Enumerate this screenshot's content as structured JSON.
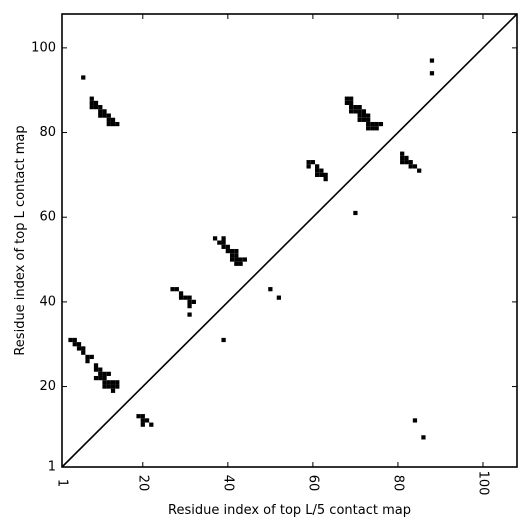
{
  "chart_data": {
    "type": "heatmap",
    "xlabel": "Residue index of top L/5 contact map",
    "ylabel": "Residue index of top L contact map",
    "xlim": [
      1,
      108
    ],
    "ylim": [
      1,
      108
    ],
    "xticks": [
      1,
      20,
      40,
      60,
      80,
      100
    ],
    "yticks": [
      1,
      20,
      40,
      60,
      80,
      100
    ],
    "x_tick_labels": [
      "1",
      "20",
      "40",
      "60",
      "80",
      "100"
    ],
    "y_tick_labels": [
      "1",
      "20",
      "40",
      "60",
      "80",
      "100"
    ],
    "diagonal": true,
    "cell_color": "#000000",
    "upper_contacts": [
      [
        6,
        93
      ],
      [
        8,
        88
      ],
      [
        8,
        87
      ],
      [
        9,
        87
      ],
      [
        8,
        86
      ],
      [
        9,
        86
      ],
      [
        10,
        86
      ],
      [
        10,
        85
      ],
      [
        11,
        85
      ],
      [
        10,
        84
      ],
      [
        11,
        84
      ],
      [
        12,
        84
      ],
      [
        12,
        83
      ],
      [
        13,
        83
      ],
      [
        12,
        82
      ],
      [
        13,
        82
      ],
      [
        14,
        82
      ],
      [
        37,
        55
      ],
      [
        38,
        54
      ],
      [
        39,
        54
      ],
      [
        39,
        55
      ],
      [
        39,
        53
      ],
      [
        40,
        53
      ],
      [
        40,
        52
      ],
      [
        41,
        52
      ],
      [
        42,
        52
      ],
      [
        41,
        51
      ],
      [
        42,
        51
      ],
      [
        41,
        50
      ],
      [
        42,
        50
      ],
      [
        43,
        50
      ],
      [
        44,
        50
      ],
      [
        42,
        49
      ],
      [
        43,
        49
      ],
      [
        59,
        73
      ],
      [
        60,
        73
      ],
      [
        59,
        72
      ],
      [
        61,
        72
      ],
      [
        61,
        71
      ],
      [
        62,
        71
      ],
      [
        61,
        70
      ],
      [
        62,
        70
      ],
      [
        63,
        70
      ],
      [
        63,
        69
      ],
      [
        68,
        88
      ],
      [
        69,
        88
      ],
      [
        68,
        87
      ],
      [
        69,
        87
      ],
      [
        69,
        86
      ],
      [
        70,
        86
      ],
      [
        71,
        86
      ],
      [
        69,
        85
      ],
      [
        70,
        85
      ],
      [
        71,
        85
      ],
      [
        72,
        85
      ],
      [
        71,
        84
      ],
      [
        72,
        84
      ],
      [
        73,
        84
      ],
      [
        71,
        83
      ],
      [
        72,
        83
      ],
      [
        73,
        83
      ],
      [
        73,
        82
      ],
      [
        74,
        82
      ],
      [
        75,
        82
      ],
      [
        76,
        82
      ],
      [
        73,
        81
      ],
      [
        74,
        81
      ],
      [
        75,
        81
      ],
      [
        81,
        75
      ],
      [
        81,
        74
      ],
      [
        82,
        74
      ],
      [
        81,
        73
      ],
      [
        82,
        73
      ],
      [
        83,
        73
      ],
      [
        83,
        72
      ],
      [
        84,
        72
      ],
      [
        85,
        71
      ],
      [
        88,
        97
      ],
      [
        88,
        94
      ],
      [
        70,
        61
      ],
      [
        50,
        43
      ],
      [
        52,
        41
      ]
    ],
    "lower_contacts": [
      [
        3,
        31
      ],
      [
        4,
        31
      ],
      [
        4,
        30
      ],
      [
        5,
        30
      ],
      [
        5,
        29
      ],
      [
        6,
        29
      ],
      [
        6,
        28
      ],
      [
        7,
        27
      ],
      [
        8,
        27
      ],
      [
        7,
        26
      ],
      [
        9,
        25
      ],
      [
        9,
        24
      ],
      [
        10,
        24
      ],
      [
        10,
        23
      ],
      [
        11,
        23
      ],
      [
        12,
        23
      ],
      [
        10,
        22
      ],
      [
        11,
        22
      ],
      [
        9,
        22
      ],
      [
        11,
        21
      ],
      [
        12,
        21
      ],
      [
        13,
        21
      ],
      [
        14,
        21
      ],
      [
        11,
        20
      ],
      [
        12,
        20
      ],
      [
        13,
        20
      ],
      [
        14,
        20
      ],
      [
        13,
        19
      ],
      [
        19,
        13
      ],
      [
        20,
        13
      ],
      [
        20,
        12
      ],
      [
        21,
        12
      ],
      [
        20,
        11
      ],
      [
        22,
        11
      ],
      [
        27,
        43
      ],
      [
        28,
        43
      ],
      [
        29,
        42
      ],
      [
        29,
        41
      ],
      [
        30,
        41
      ],
      [
        31,
        41
      ],
      [
        32,
        40
      ],
      [
        31,
        40
      ],
      [
        31,
        39
      ],
      [
        31,
        37
      ],
      [
        39,
        31
      ],
      [
        84,
        12
      ],
      [
        86,
        8
      ]
    ]
  }
}
